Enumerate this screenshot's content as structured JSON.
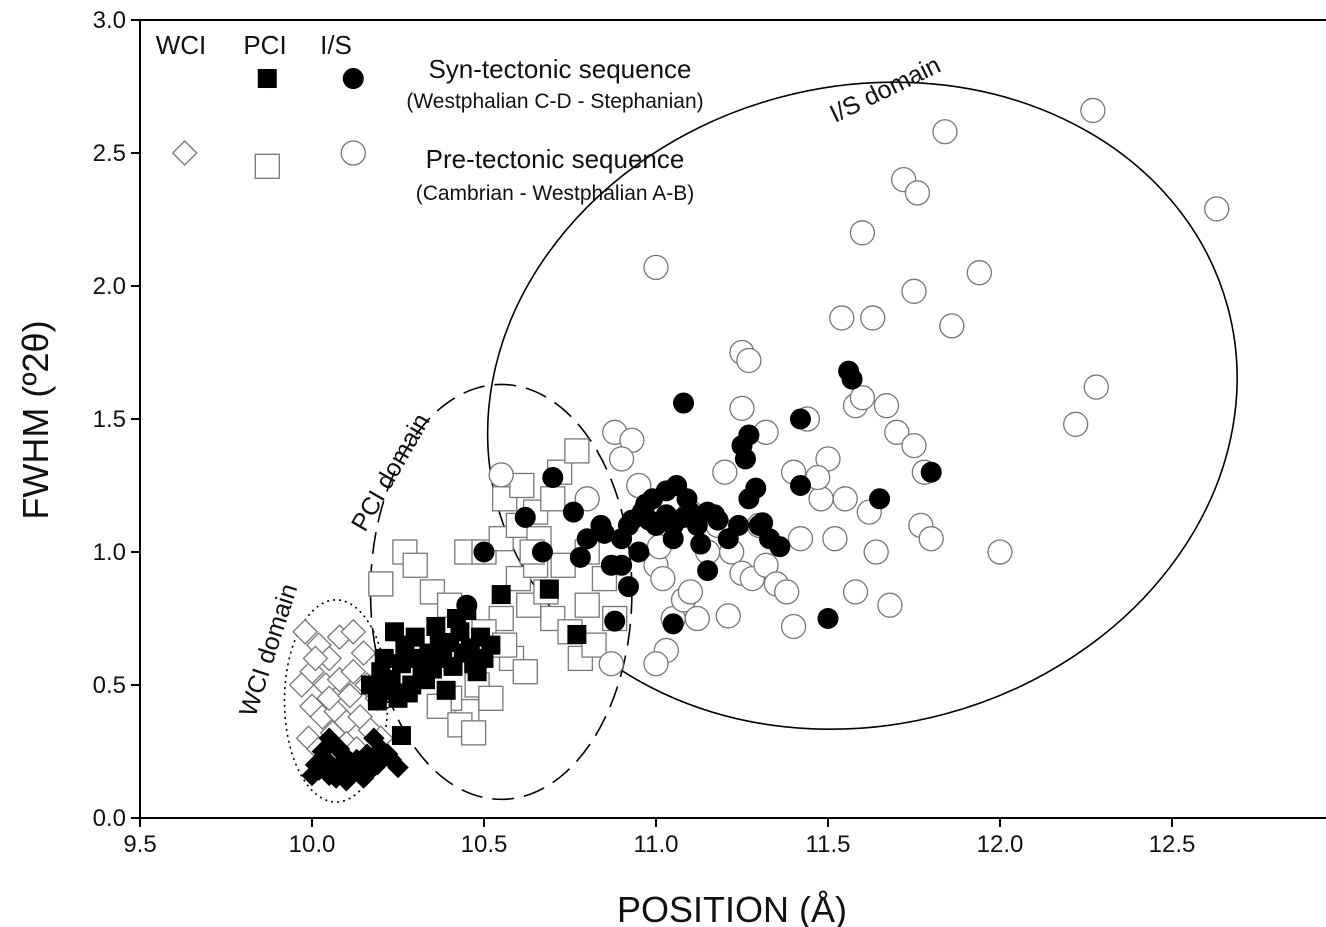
{
  "chart_data": {
    "type": "scatter",
    "xlabel": "POSITION (Å)",
    "ylabel": "FWHM (º2θ)",
    "xlim": [
      9.5,
      13.0
    ],
    "ylim": [
      0.0,
      3.0
    ],
    "x_ticks": [
      "9.5",
      "10.0",
      "10.5",
      "11.0",
      "11.5",
      "12.0",
      "12.5"
    ],
    "y_ticks": [
      "0.0",
      "0.5",
      "1.0",
      "1.5",
      "2.0",
      "2.5",
      "3.0"
    ],
    "legend": {
      "placement": "top-left",
      "column_headers": [
        "WCI",
        "PCI",
        "I/S"
      ],
      "rows": [
        {
          "title": "Syn-tectonic sequence",
          "subtitle": "(Westphalian C-D - Stephanian)",
          "filled": true
        },
        {
          "title": "Pre-tectonic sequence",
          "subtitle": "(Cambrian - Westphalian A-B)",
          "filled": false
        }
      ]
    },
    "domains": [
      {
        "label": "WCI domain",
        "style": "dotted",
        "cx": 10.07,
        "cy": 0.44,
        "rx": 0.15,
        "ry": 0.38
      },
      {
        "label": "PCI domain",
        "style": "dashed",
        "cx": 10.55,
        "cy": 0.85,
        "rx": 0.38,
        "ry": 0.78
      },
      {
        "label": "I/S domain",
        "style": "solid",
        "cx": 11.6,
        "cy": 1.55,
        "rx": 1.1,
        "ry": 1.2,
        "rotate": -15
      }
    ],
    "series": [
      {
        "name": "WCI syn-tectonic",
        "marker": "diamond",
        "filled": true,
        "points": [
          [
            10.02,
            0.18
          ],
          [
            10.05,
            0.16
          ],
          [
            10.07,
            0.15
          ],
          [
            10.1,
            0.14
          ],
          [
            10.12,
            0.17
          ],
          [
            10.15,
            0.15
          ],
          [
            10.04,
            0.22
          ],
          [
            10.08,
            0.2
          ],
          [
            10.11,
            0.21
          ],
          [
            10.14,
            0.19
          ],
          [
            10.03,
            0.25
          ],
          [
            10.06,
            0.28
          ],
          [
            10.09,
            0.24
          ],
          [
            10.13,
            0.22
          ],
          [
            10.17,
            0.18
          ],
          [
            10.19,
            0.2
          ],
          [
            10.0,
            0.16
          ],
          [
            10.16,
            0.24
          ],
          [
            10.2,
            0.26
          ],
          [
            10.05,
            0.3
          ],
          [
            10.25,
            0.19
          ],
          [
            10.18,
            0.3
          ],
          [
            10.22,
            0.24
          ],
          [
            10.1,
            0.17
          ],
          [
            10.01,
            0.2
          ],
          [
            10.23,
            0.22
          ],
          [
            10.08,
            0.26
          ]
        ]
      },
      {
        "name": "WCI pre-tectonic",
        "marker": "diamond",
        "filled": false,
        "points": [
          [
            9.63,
            2.5
          ],
          [
            9.98,
            0.7
          ],
          [
            10.02,
            0.65
          ],
          [
            10.05,
            0.6
          ],
          [
            10.08,
            0.68
          ],
          [
            10.12,
            0.7
          ],
          [
            10.15,
            0.62
          ],
          [
            10.0,
            0.55
          ],
          [
            10.04,
            0.5
          ],
          [
            10.08,
            0.52
          ],
          [
            10.12,
            0.55
          ],
          [
            10.16,
            0.5
          ],
          [
            10.19,
            0.45
          ],
          [
            10.0,
            0.42
          ],
          [
            10.03,
            0.38
          ],
          [
            10.07,
            0.4
          ],
          [
            10.1,
            0.36
          ],
          [
            10.14,
            0.38
          ],
          [
            10.17,
            0.33
          ],
          [
            10.2,
            0.3
          ],
          [
            9.99,
            0.3
          ],
          [
            10.02,
            0.26
          ],
          [
            10.06,
            0.32
          ],
          [
            10.1,
            0.28
          ],
          [
            10.13,
            0.26
          ],
          [
            9.97,
            0.5
          ],
          [
            10.05,
            0.45
          ],
          [
            10.11,
            0.46
          ],
          [
            10.01,
            0.6
          ]
        ]
      },
      {
        "name": "PCI syn-tectonic",
        "marker": "square",
        "filled": true,
        "points": [
          [
            9.87,
            2.78
          ],
          [
            10.17,
            0.5
          ],
          [
            10.2,
            0.55
          ],
          [
            10.23,
            0.52
          ],
          [
            10.26,
            0.58
          ],
          [
            10.29,
            0.5
          ],
          [
            10.32,
            0.54
          ],
          [
            10.35,
            0.56
          ],
          [
            10.38,
            0.6
          ],
          [
            10.41,
            0.57
          ],
          [
            10.44,
            0.62
          ],
          [
            10.47,
            0.58
          ],
          [
            10.5,
            0.6
          ],
          [
            10.22,
            0.48
          ],
          [
            10.25,
            0.45
          ],
          [
            10.28,
            0.47
          ],
          [
            10.31,
            0.6
          ],
          [
            10.34,
            0.62
          ],
          [
            10.37,
            0.65
          ],
          [
            10.4,
            0.66
          ],
          [
            10.43,
            0.7
          ],
          [
            10.46,
            0.64
          ],
          [
            10.49,
            0.68
          ],
          [
            10.24,
            0.7
          ],
          [
            10.3,
            0.68
          ],
          [
            10.36,
            0.72
          ],
          [
            10.42,
            0.75
          ],
          [
            10.45,
            0.78
          ],
          [
            10.55,
            0.84
          ],
          [
            10.69,
            0.86
          ],
          [
            10.77,
            0.69
          ],
          [
            10.26,
            0.31
          ],
          [
            10.19,
            0.44
          ],
          [
            10.33,
            0.52
          ],
          [
            10.39,
            0.48
          ],
          [
            10.21,
            0.6
          ],
          [
            10.27,
            0.65
          ],
          [
            10.48,
            0.55
          ],
          [
            10.52,
            0.65
          ]
        ]
      },
      {
        "name": "PCI pre-tectonic",
        "marker": "square",
        "filled": false,
        "points": [
          [
            9.87,
            2.45
          ],
          [
            10.2,
            0.88
          ],
          [
            10.27,
            1.0
          ],
          [
            10.3,
            0.95
          ],
          [
            10.35,
            0.85
          ],
          [
            10.4,
            0.8
          ],
          [
            10.45,
            1.0
          ],
          [
            10.5,
            1.0
          ],
          [
            10.55,
            1.05
          ],
          [
            10.6,
            1.1
          ],
          [
            10.65,
            1.15
          ],
          [
            10.7,
            1.2
          ],
          [
            10.72,
            1.3
          ],
          [
            10.77,
            1.38
          ],
          [
            10.6,
            0.9
          ],
          [
            10.65,
            0.95
          ],
          [
            10.7,
            0.75
          ],
          [
            10.75,
            0.7
          ],
          [
            10.8,
            0.8
          ],
          [
            10.85,
            0.9
          ],
          [
            10.55,
            0.75
          ],
          [
            10.5,
            0.7
          ],
          [
            10.58,
            0.6
          ],
          [
            10.62,
            0.55
          ],
          [
            10.48,
            0.5
          ],
          [
            10.45,
            0.4
          ],
          [
            10.4,
            0.45
          ],
          [
            10.37,
            0.42
          ],
          [
            10.43,
            0.35
          ],
          [
            10.47,
            0.32
          ],
          [
            10.52,
            0.45
          ],
          [
            10.56,
            0.65
          ],
          [
            10.63,
            0.8
          ],
          [
            10.68,
            0.85
          ],
          [
            10.78,
            0.6
          ],
          [
            10.82,
            0.65
          ],
          [
            10.88,
            0.75
          ],
          [
            10.66,
            1.05
          ],
          [
            10.73,
            0.95
          ],
          [
            10.8,
            1.0
          ],
          [
            10.56,
            1.2
          ],
          [
            10.61,
            1.25
          ],
          [
            10.64,
            1.0
          ]
        ]
      },
      {
        "name": "I/S syn-tectonic",
        "marker": "circle",
        "filled": true,
        "points": [
          [
            10.12,
            2.78
          ],
          [
            10.45,
            0.8
          ],
          [
            10.5,
            1.0
          ],
          [
            10.62,
            1.13
          ],
          [
            10.67,
            1.0
          ],
          [
            10.7,
            1.28
          ],
          [
            10.76,
            1.15
          ],
          [
            10.78,
            0.98
          ],
          [
            10.8,
            1.05
          ],
          [
            10.85,
            1.07
          ],
          [
            10.87,
            0.95
          ],
          [
            10.9,
            0.95
          ],
          [
            10.9,
            1.05
          ],
          [
            10.93,
            1.12
          ],
          [
            10.96,
            1.15
          ],
          [
            10.99,
            1.2
          ],
          [
            11.03,
            1.23
          ],
          [
            11.06,
            1.25
          ],
          [
            11.09,
            1.2
          ],
          [
            11.12,
            1.1
          ],
          [
            11.15,
            1.15
          ],
          [
            11.18,
            1.12
          ],
          [
            11.21,
            1.05
          ],
          [
            11.24,
            1.1
          ],
          [
            11.27,
            1.2
          ],
          [
            11.3,
            1.1
          ],
          [
            11.33,
            1.05
          ],
          [
            11.36,
            1.02
          ],
          [
            10.95,
            1.0
          ],
          [
            11.0,
            1.1
          ],
          [
            11.05,
            1.05
          ],
          [
            11.1,
            1.15
          ],
          [
            11.25,
            1.4
          ],
          [
            11.26,
            1.35
          ],
          [
            11.42,
            1.5
          ],
          [
            11.56,
            1.68
          ],
          [
            11.57,
            1.65
          ],
          [
            11.65,
            1.2
          ],
          [
            11.8,
            1.3
          ],
          [
            11.42,
            1.25
          ],
          [
            11.5,
            0.75
          ],
          [
            11.05,
            0.73
          ],
          [
            10.88,
            0.74
          ],
          [
            10.92,
            0.87
          ],
          [
            11.08,
            1.56
          ],
          [
            11.15,
            0.93
          ],
          [
            11.27,
            1.44
          ],
          [
            11.29,
            1.24
          ],
          [
            11.31,
            1.11
          ],
          [
            11.13,
            1.03
          ],
          [
            11.08,
            1.13
          ],
          [
            11.03,
            1.14
          ],
          [
            10.98,
            1.12
          ],
          [
            10.84,
            1.1
          ],
          [
            10.92,
            1.1
          ],
          [
            10.97,
            1.18
          ],
          [
            11.17,
            1.14
          ],
          [
            11.05,
            1.1
          ]
        ]
      },
      {
        "name": "I/S pre-tectonic",
        "marker": "circle",
        "filled": false,
        "points": [
          [
            10.12,
            2.5
          ],
          [
            10.55,
            1.29
          ],
          [
            10.8,
            1.2
          ],
          [
            10.88,
            1.45
          ],
          [
            10.93,
            1.42
          ],
          [
            10.9,
            1.35
          ],
          [
            10.95,
            1.25
          ],
          [
            11.0,
            0.95
          ],
          [
            11.02,
            0.9
          ],
          [
            11.05,
            0.75
          ],
          [
            11.08,
            0.82
          ],
          [
            11.1,
            0.85
          ],
          [
            11.12,
            0.75
          ],
          [
            11.15,
            1.0
          ],
          [
            11.18,
            1.1
          ],
          [
            11.2,
            1.3
          ],
          [
            11.22,
            1.0
          ],
          [
            11.25,
            0.92
          ],
          [
            11.28,
            0.9
          ],
          [
            11.3,
            1.1
          ],
          [
            11.32,
            0.95
          ],
          [
            11.35,
            0.88
          ],
          [
            11.38,
            0.85
          ],
          [
            11.4,
            1.3
          ],
          [
            11.42,
            1.05
          ],
          [
            11.44,
            1.5
          ],
          [
            11.48,
            1.2
          ],
          [
            11.5,
            1.35
          ],
          [
            11.52,
            1.05
          ],
          [
            11.55,
            1.2
          ],
          [
            11.58,
            1.55
          ],
          [
            11.6,
            1.58
          ],
          [
            11.62,
            1.15
          ],
          [
            11.64,
            1.0
          ],
          [
            11.67,
            1.55
          ],
          [
            11.7,
            1.45
          ],
          [
            11.75,
            1.4
          ],
          [
            11.77,
            1.1
          ],
          [
            11.78,
            1.3
          ],
          [
            11.8,
            1.05
          ],
          [
            11.58,
            0.85
          ],
          [
            11.68,
            0.8
          ],
          [
            11.6,
            2.2
          ],
          [
            11.72,
            2.4
          ],
          [
            11.76,
            2.35
          ],
          [
            11.84,
            2.58
          ],
          [
            11.94,
            2.05
          ],
          [
            11.86,
            1.85
          ],
          [
            11.75,
            1.98
          ],
          [
            11.63,
            1.88
          ],
          [
            11.54,
            1.88
          ],
          [
            11.25,
            1.75
          ],
          [
            11.27,
            1.72
          ],
          [
            11.0,
            2.07
          ],
          [
            12.27,
            2.66
          ],
          [
            12.63,
            2.29
          ],
          [
            12.28,
            1.62
          ],
          [
            12.22,
            1.48
          ],
          [
            12.0,
            1.0
          ],
          [
            11.4,
            0.72
          ],
          [
            11.25,
            1.54
          ],
          [
            11.21,
            0.76
          ],
          [
            11.03,
            0.63
          ],
          [
            11.0,
            0.58
          ],
          [
            10.87,
            0.58
          ],
          [
            11.32,
            1.45
          ],
          [
            11.47,
            1.28
          ],
          [
            11.1,
            1.15
          ],
          [
            11.01,
            1.02
          ]
        ]
      }
    ]
  }
}
